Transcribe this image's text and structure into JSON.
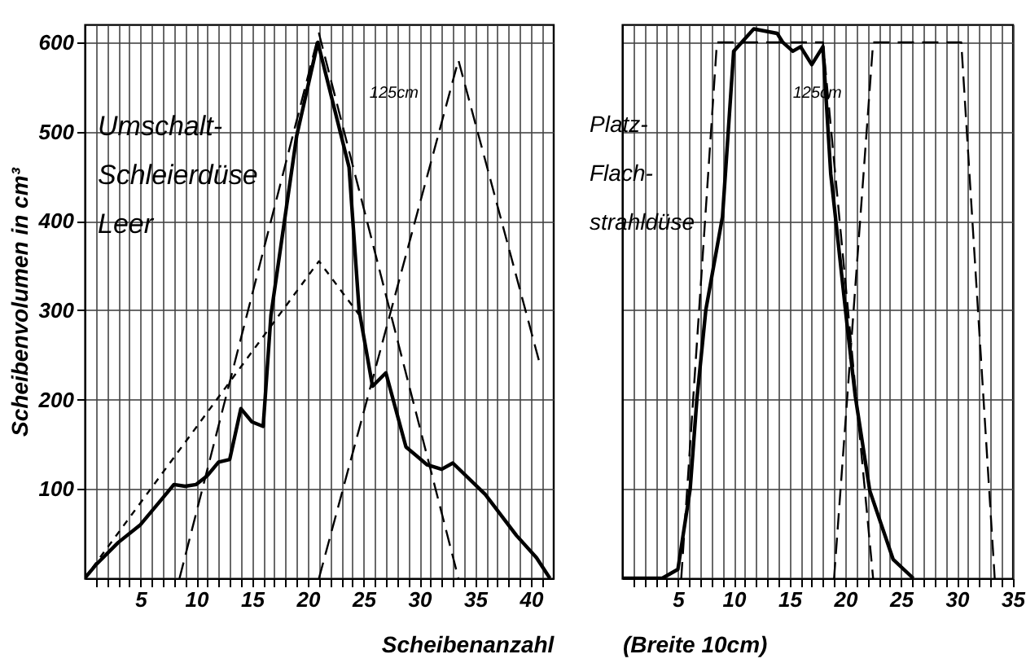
{
  "chart_data": [
    {
      "type": "line",
      "xlabel": "Scheibenanzahl",
      "ylabel": "Scheibenvolumen in cm³",
      "xlim": [
        0,
        42
      ],
      "ylim": [
        0,
        620
      ],
      "xticks": [
        {
          "value": 1,
          "label": null
        },
        {
          "value": 2,
          "label": null
        },
        {
          "value": 3,
          "label": null
        },
        {
          "value": 4,
          "label": null
        },
        5,
        {
          "value": 6,
          "label": null
        },
        {
          "value": 7,
          "label": null
        },
        {
          "value": 8,
          "label": null
        },
        {
          "value": 9,
          "label": null
        },
        10,
        {
          "value": 11,
          "label": null
        },
        {
          "value": 12,
          "label": null
        },
        {
          "value": 13,
          "label": null
        },
        {
          "value": 14,
          "label": null
        },
        15,
        {
          "value": 16,
          "label": null
        },
        {
          "value": 17,
          "label": null
        },
        {
          "value": 18,
          "label": null
        },
        {
          "value": 19,
          "label": null
        },
        20,
        {
          "value": 21,
          "label": null
        },
        {
          "value": 22,
          "label": null
        },
        {
          "value": 23,
          "label": null
        },
        {
          "value": 24,
          "label": null
        },
        25,
        {
          "value": 26,
          "label": null
        },
        {
          "value": 27,
          "label": null
        },
        {
          "value": 28,
          "label": null
        },
        {
          "value": 29,
          "label": null
        },
        30,
        {
          "value": 31,
          "label": null
        },
        {
          "value": 32,
          "label": null
        },
        {
          "value": 33,
          "label": null
        },
        {
          "value": 34,
          "label": null
        },
        35,
        {
          "value": 36,
          "label": null
        },
        {
          "value": 37,
          "label": null
        },
        {
          "value": 38,
          "label": null
        },
        {
          "value": 39,
          "label": null
        },
        40,
        {
          "value": 41,
          "label": null
        }
      ],
      "yticks": [
        100,
        200,
        300,
        400,
        500,
        600
      ],
      "grid": true,
      "legend": false,
      "series": [
        {
          "color": "#000000",
          "line_style": "solid",
          "x": [
            0,
            1,
            3,
            5,
            7,
            8,
            9,
            10,
            11,
            12,
            13,
            14,
            15,
            16,
            16.7,
            19,
            20.9,
            23.7,
            24.6,
            25.8,
            27,
            28.8,
            30.7,
            32,
            33,
            35.9,
            38.7,
            40.5,
            41.7
          ],
          "values": [
            0,
            15,
            40,
            60,
            90,
            105,
            103,
            105,
            115,
            130,
            133,
            190,
            175,
            170,
            295,
            495,
            600,
            460,
            300,
            215,
            230,
            147,
            127,
            122,
            129,
            94,
            48,
            23,
            0
          ]
        },
        {
          "color": "#000000",
          "line_style": "dashed",
          "x": [
            8.5,
            21,
            33.5
          ],
          "values": [
            0,
            610,
            0
          ]
        },
        {
          "color": "#000000",
          "line_style": "dashed",
          "x": [
            21,
            33.5,
            40.8
          ],
          "values": [
            0,
            580,
            240
          ]
        },
        {
          "color": "#000000",
          "line_style": "dotted",
          "x": [
            0,
            21,
            24.6
          ],
          "values": [
            0,
            355,
            295
          ]
        }
      ],
      "annotations": [
        "Umschalt-\nSchleierdüse\nLeer",
        "125cm"
      ]
    },
    {
      "type": "line",
      "xlabel": "(Breite 10cm)",
      "xlim": [
        0,
        35
      ],
      "ylim": [
        0,
        620
      ],
      "tick_labels": "x",
      "xticks": [
        {
          "value": 1,
          "label": null
        },
        {
          "value": 2,
          "label": null
        },
        {
          "value": 3,
          "label": null
        },
        {
          "value": 4,
          "label": null
        },
        5,
        {
          "value": 6,
          "label": null
        },
        {
          "value": 7,
          "label": null
        },
        {
          "value": 8,
          "label": null
        },
        {
          "value": 9,
          "label": null
        },
        10,
        {
          "value": 11,
          "label": null
        },
        {
          "value": 12,
          "label": null
        },
        {
          "value": 13,
          "label": null
        },
        {
          "value": 14,
          "label": null
        },
        15,
        {
          "value": 16,
          "label": null
        },
        {
          "value": 17,
          "label": null
        },
        {
          "value": 18,
          "label": null
        },
        {
          "value": 19,
          "label": null
        },
        20,
        {
          "value": 21,
          "label": null
        },
        {
          "value": 22,
          "label": null
        },
        {
          "value": 23,
          "label": null
        },
        {
          "value": 24,
          "label": null
        },
        25,
        {
          "value": 26,
          "label": null
        },
        {
          "value": 27,
          "label": null
        },
        {
          "value": 28,
          "label": null
        },
        {
          "value": 29,
          "label": null
        },
        30,
        {
          "value": 31,
          "label": null
        },
        {
          "value": 32,
          "label": null
        },
        {
          "value": 33,
          "label": null
        },
        {
          "value": 34,
          "label": null
        },
        35
      ],
      "yticks": [
        100,
        200,
        300,
        400,
        500,
        600
      ],
      "grid": true,
      "legend": false,
      "series": [
        {
          "color": "#000000",
          "line_style": "solid",
          "x": [
            0,
            3.6,
            5,
            6.1,
            6.7,
            7.5,
            9,
            10,
            11.8,
            13.9,
            14.4,
            15.3,
            16,
            17,
            18,
            18.7,
            20.2,
            20.9,
            22.2,
            24.3,
            26.1
          ],
          "values": [
            0,
            0,
            10,
            100,
            200,
            300,
            405,
            590,
            615,
            610,
            600,
            590,
            595,
            575,
            595,
            453,
            280,
            204,
            98,
            21,
            0
          ]
        },
        {
          "color": "#000000",
          "line_style": "dashed",
          "x": [
            5.3,
            8.5,
            18,
            22.5
          ],
          "values": [
            0,
            600,
            600,
            0
          ]
        },
        {
          "color": "#000000",
          "line_style": "dashed",
          "x": [
            19,
            22.5,
            30.4,
            33.4
          ],
          "values": [
            0,
            600,
            600,
            0
          ]
        }
      ],
      "annotations": [
        "Platz-\nFlach-\nstrahldüse",
        "125cm"
      ]
    }
  ]
}
